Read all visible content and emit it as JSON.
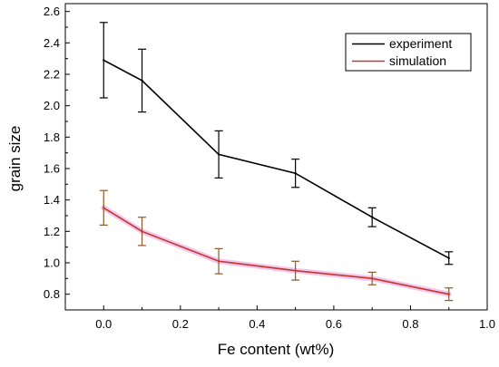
{
  "chart_data": {
    "type": "line",
    "xlabel": "Fe content (wt%)",
    "ylabel": "grain size",
    "xlim": [
      -0.1,
      1.0
    ],
    "ylim": [
      0.7,
      2.65
    ],
    "x_ticks": [
      0.0,
      0.2,
      0.4,
      0.6,
      0.8,
      1.0
    ],
    "x_tick_labels": [
      "0.0",
      "0.2",
      "0.4",
      "0.6",
      "0.8",
      "1.0"
    ],
    "y_ticks": [
      0.8,
      1.0,
      1.2,
      1.4,
      1.6,
      1.8,
      2.0,
      2.2,
      2.4,
      2.6
    ],
    "y_tick_labels": [
      "0.8",
      "1.0",
      "1.2",
      "1.4",
      "1.6",
      "1.8",
      "2.0",
      "2.2",
      "2.4",
      "2.6"
    ],
    "grid": false,
    "legend_position": "top-right",
    "series": [
      {
        "name": "experiment",
        "color": "#000000",
        "x": [
          0.0,
          0.1,
          0.3,
          0.5,
          0.7,
          0.9
        ],
        "y": [
          2.29,
          2.16,
          1.69,
          1.57,
          1.29,
          1.03
        ],
        "y_err": [
          0.24,
          0.2,
          0.15,
          0.09,
          0.06,
          0.04
        ]
      },
      {
        "name": "simulation",
        "color": "#c0392b",
        "errorbar_color": "#8b5a2b",
        "x": [
          0.0,
          0.1,
          0.3,
          0.5,
          0.7,
          0.9
        ],
        "y": [
          1.35,
          1.2,
          1.01,
          0.95,
          0.9,
          0.8
        ],
        "y_err": [
          0.11,
          0.09,
          0.08,
          0.06,
          0.04,
          0.04
        ]
      }
    ]
  }
}
